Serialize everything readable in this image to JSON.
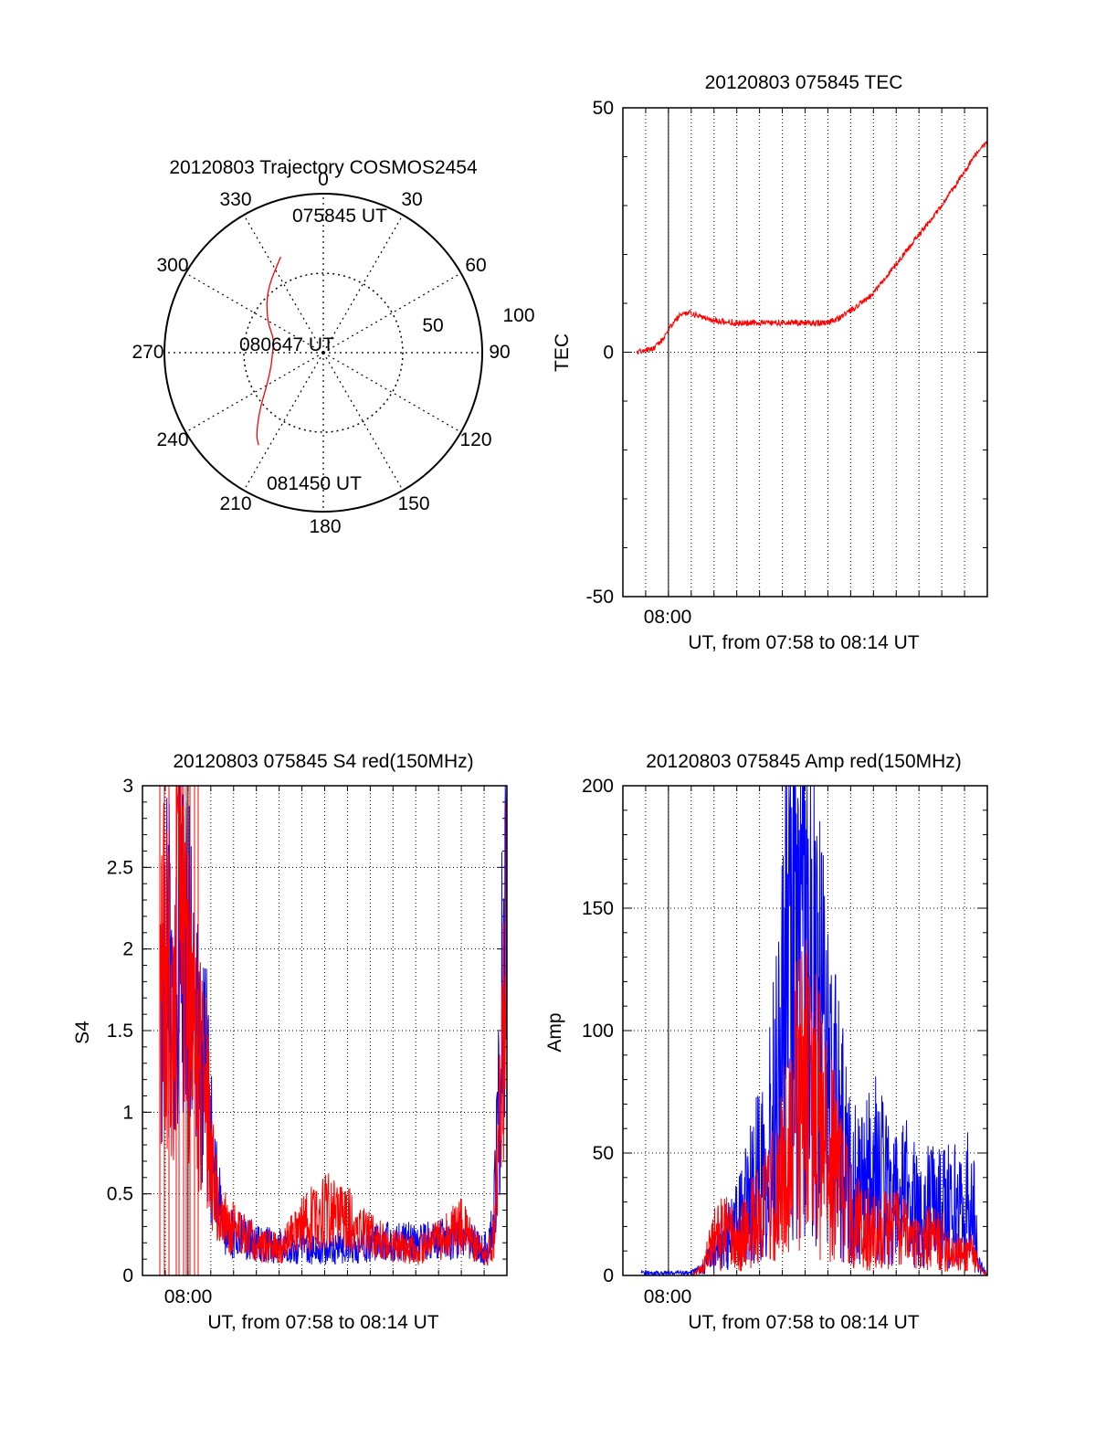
{
  "colors": {
    "red": "#ff0000",
    "blue": "#0000ff",
    "axis": "#000000",
    "grid": "#000000"
  },
  "chart_data": [
    {
      "type": "polar",
      "title": "20120803 Trajectory COSMOS2454",
      "angle_labels": [
        "0",
        "30",
        "60",
        "90",
        "120",
        "150",
        "180",
        "210",
        "240",
        "270",
        "300",
        "330"
      ],
      "radial_labels": [
        "50",
        "100"
      ],
      "radial_values": [
        50,
        100
      ],
      "point_labels": [
        "075845 UT",
        "080647 UT",
        "081450 UT"
      ],
      "series": [
        {
          "color": "red",
          "points": [
            {
              "az": 336,
              "r": 66
            },
            {
              "az": 318,
              "r": 53
            },
            {
              "az": 300,
              "r": 41
            },
            {
              "az": 285,
              "r": 32
            },
            {
              "az": 270,
              "r": 32
            },
            {
              "az": 255,
              "r": 34
            },
            {
              "az": 240,
              "r": 41
            },
            {
              "az": 228,
              "r": 54
            },
            {
              "az": 219,
              "r": 67
            },
            {
              "az": 215,
              "r": 71
            }
          ]
        }
      ]
    },
    {
      "type": "line",
      "title": "20120803 075845 TEC",
      "ylabel": "TEC",
      "xlabel": "UT, from 07:58 to 08:14 UT",
      "xtick_label": "08:00",
      "xlim": [
        0,
        16
      ],
      "ylim": [
        -50,
        50
      ],
      "yticks": [
        "-50",
        "0",
        "50"
      ],
      "grid": true,
      "series": [
        {
          "color": "red",
          "x": [
            0.6,
            1.0,
            1.4,
            1.8,
            2.2,
            2.6,
            3.0,
            3.5,
            4.0,
            5.0,
            6.0,
            7.0,
            8.0,
            9.0,
            9.5,
            10.0,
            11.0,
            12.0,
            13.0,
            14.0,
            15.0,
            15.5,
            16.0
          ],
          "y": [
            0,
            0.5,
            1,
            3,
            6,
            8,
            8,
            7,
            6.5,
            6,
            6,
            6,
            6,
            6,
            7,
            8.5,
            12,
            18,
            24,
            30,
            37,
            40.5,
            43
          ]
        }
      ]
    },
    {
      "type": "line",
      "title": "20120803 075845 S4 red(150MHz)",
      "ylabel": "S4",
      "xlabel": "UT, from 07:58 to 08:14 UT",
      "xtick_label": "08:00",
      "xlim": [
        0,
        16
      ],
      "ylim": [
        0,
        3
      ],
      "yticks": [
        "0",
        "0.5",
        "1",
        "1.5",
        "2",
        "2.5",
        "3"
      ],
      "grid": true,
      "series": [
        {
          "color": "blue",
          "x": [
            0.8,
            1.0,
            1.3,
            1.6,
            2.0,
            2.4,
            2.8,
            3.0,
            3.5,
            4.0,
            5.0,
            6.0,
            7.0,
            8.0,
            9.0,
            10.0,
            11.0,
            12.0,
            13.0,
            14.0,
            15.0,
            15.4,
            15.7,
            16.0
          ],
          "y": [
            1.8,
            2.2,
            1.6,
            2.4,
            1.9,
            1.4,
            1.2,
            0.8,
            0.3,
            0.25,
            0.2,
            0.18,
            0.17,
            0.16,
            0.17,
            0.2,
            0.22,
            0.2,
            0.22,
            0.25,
            0.15,
            0.3,
            1.2,
            3.0
          ]
        },
        {
          "color": "red",
          "x": [
            0.8,
            1.0,
            1.3,
            1.6,
            2.0,
            2.4,
            2.8,
            3.0,
            3.5,
            4.0,
            5.0,
            6.0,
            7.0,
            8.0,
            9.0,
            10.0,
            11.0,
            12.0,
            13.0,
            14.0,
            15.0,
            15.4,
            15.7,
            16.0
          ],
          "y": [
            1.6,
            2.0,
            1.4,
            2.2,
            1.7,
            1.3,
            1.1,
            0.7,
            0.35,
            0.28,
            0.2,
            0.16,
            0.3,
            0.4,
            0.35,
            0.25,
            0.18,
            0.15,
            0.22,
            0.3,
            0.12,
            0.2,
            0.9,
            2.0
          ]
        }
      ]
    },
    {
      "type": "line",
      "title": "20120803 075845 Amp red(150MHz)",
      "ylabel": "Amp",
      "xlabel": "UT, from 07:58 to 08:14 UT",
      "xtick_label": "08:00",
      "xlim": [
        0,
        16
      ],
      "ylim": [
        0,
        200
      ],
      "yticks": [
        "0",
        "50",
        "100",
        "150",
        "200"
      ],
      "grid": true,
      "series": [
        {
          "color": "blue",
          "x": [
            0.8,
            2.0,
            3.0,
            3.5,
            4.0,
            4.5,
            5.0,
            5.5,
            6.0,
            6.5,
            7.0,
            7.3,
            7.6,
            8.0,
            8.5,
            9.0,
            9.5,
            10.0,
            10.5,
            11.0,
            12.0,
            12.5,
            13.0,
            13.5,
            14.0,
            14.5,
            15.0,
            15.3,
            15.6,
            16.0
          ],
          "y": [
            1,
            1,
            1,
            3,
            10,
            15,
            20,
            30,
            45,
            60,
            100,
            150,
            120,
            140,
            110,
            80,
            60,
            40,
            35,
            45,
            30,
            35,
            25,
            30,
            28,
            30,
            25,
            40,
            5,
            0
          ]
        },
        {
          "color": "red",
          "x": [
            0.8,
            2.0,
            3.0,
            3.5,
            4.0,
            4.5,
            5.0,
            5.5,
            6.0,
            6.5,
            7.0,
            7.3,
            7.6,
            8.0,
            8.5,
            9.0,
            9.5,
            10.0,
            10.5,
            11.0,
            12.0,
            12.5,
            13.0,
            13.5,
            14.0,
            14.5,
            15.0,
            15.3,
            15.6,
            16.0
          ],
          "y": [
            0,
            0,
            0,
            3,
            15,
            18,
            12,
            20,
            25,
            30,
            40,
            55,
            70,
            75,
            65,
            50,
            40,
            25,
            20,
            18,
            20,
            15,
            12,
            15,
            14,
            10,
            8,
            12,
            3,
            0
          ]
        }
      ]
    }
  ]
}
